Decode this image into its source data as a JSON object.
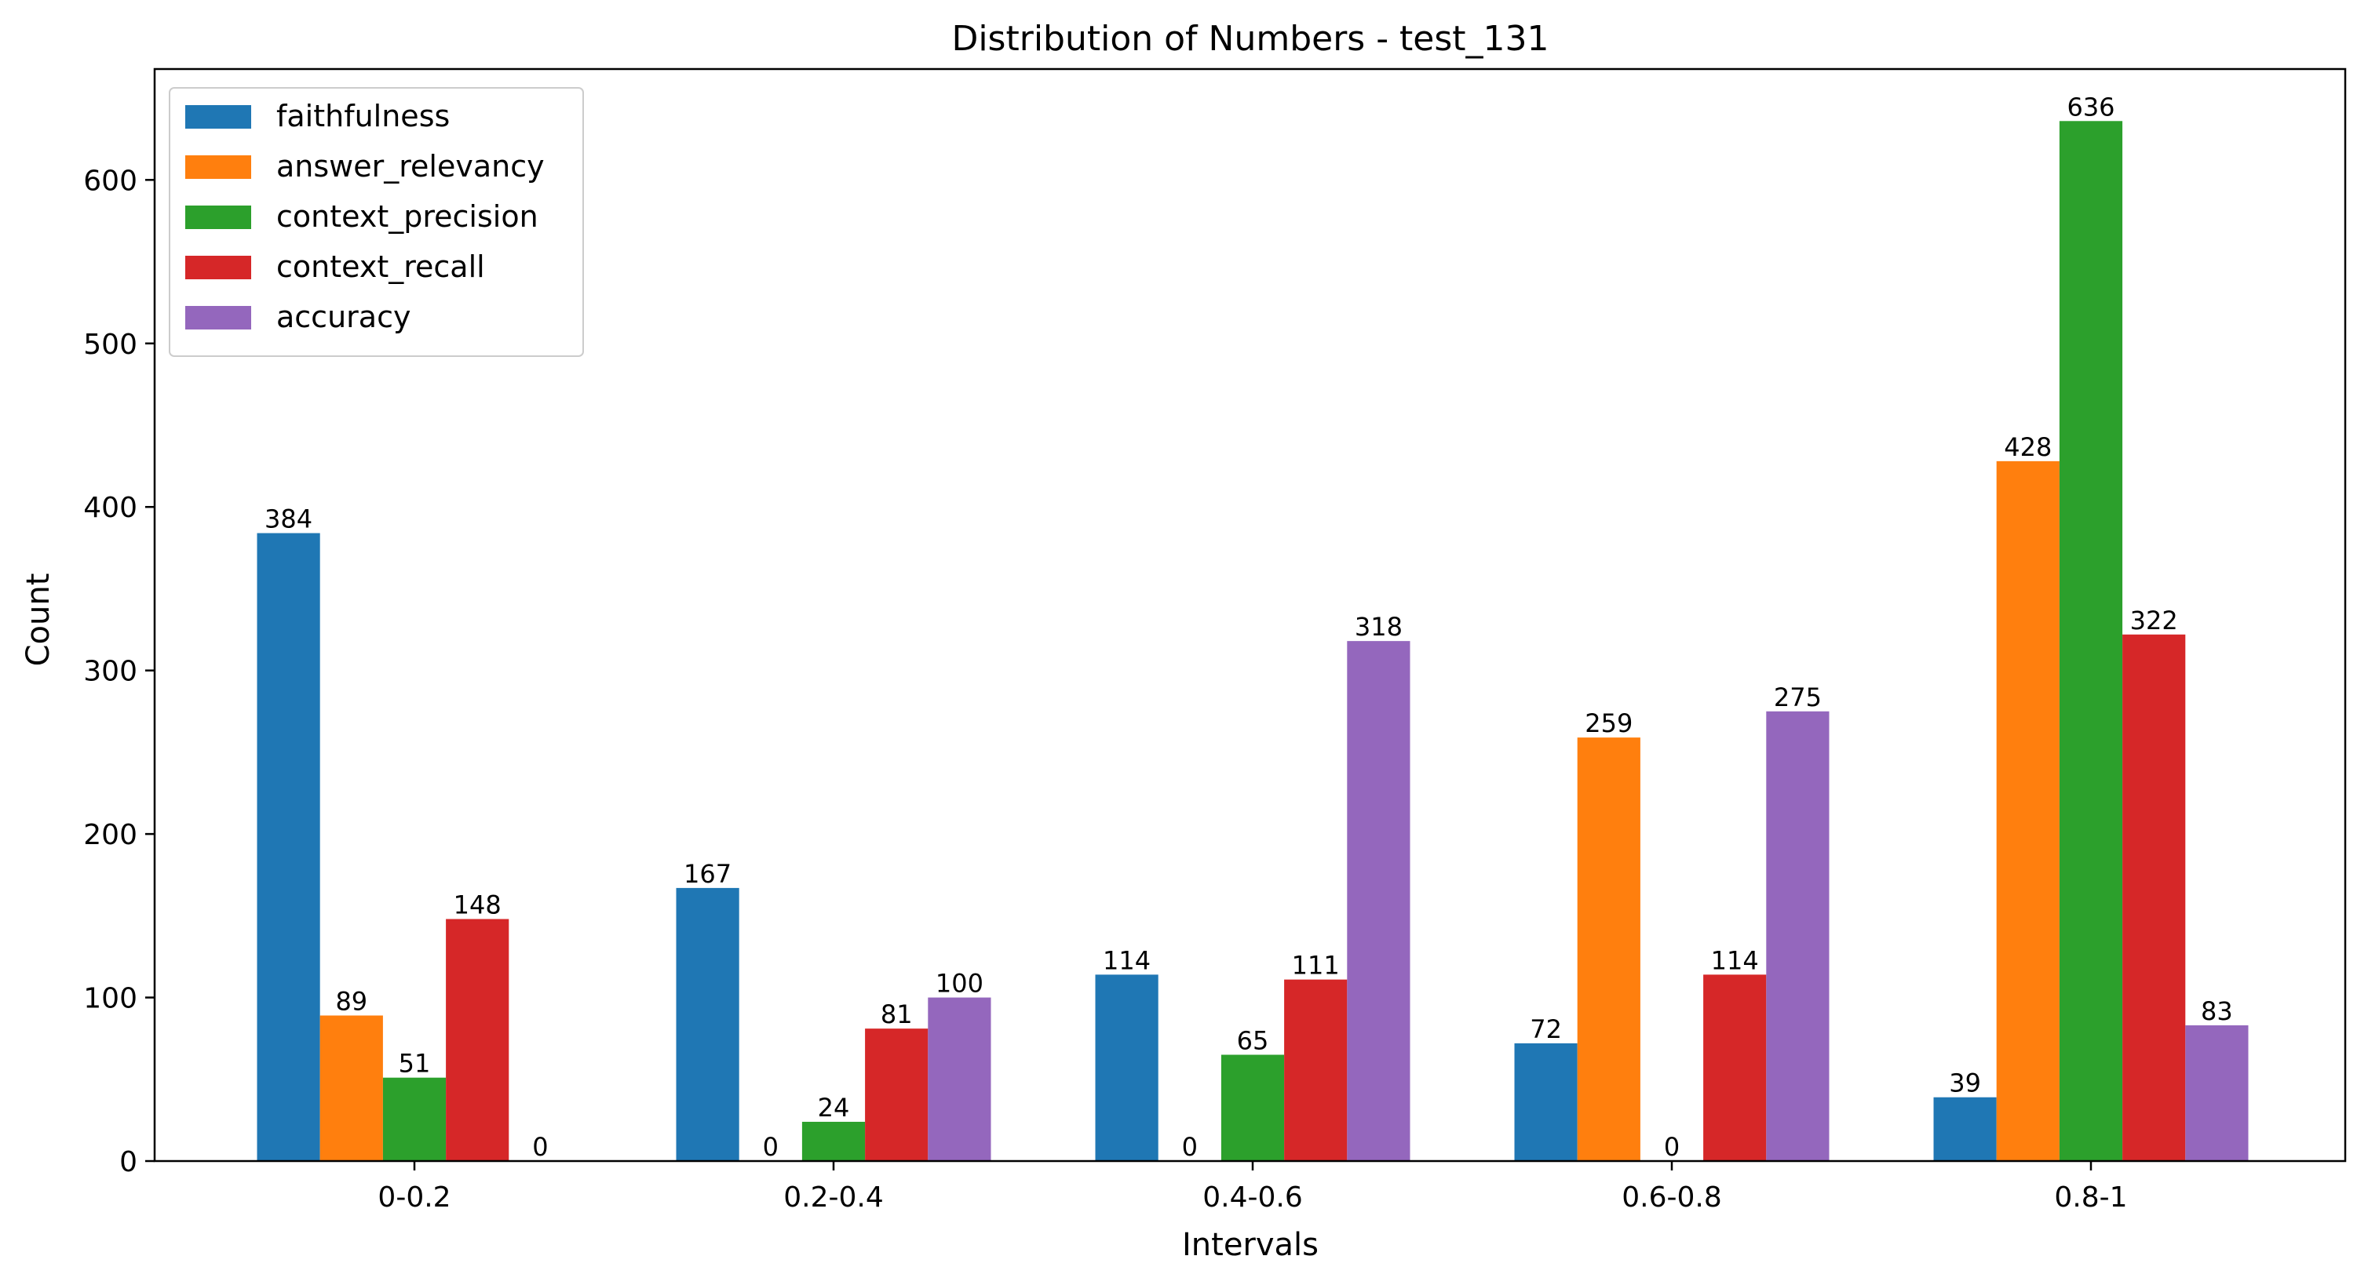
{
  "chart_data": {
    "type": "bar",
    "title": "Distribution of Numbers - test_131",
    "xlabel": "Intervals",
    "ylabel": "Count",
    "categories": [
      "0-0.2",
      "0.2-0.4",
      "0.4-0.6",
      "0.6-0.8",
      "0.8-1"
    ],
    "ylim": [
      0,
      667.8
    ],
    "yticks": [
      0,
      100,
      200,
      300,
      400,
      500,
      600
    ],
    "grid": false,
    "legend_position": "top-left",
    "series": [
      {
        "name": "faithfulness",
        "color": "#1f77b4",
        "values": [
          384,
          167,
          114,
          72,
          39
        ]
      },
      {
        "name": "answer_relevancy",
        "color": "#ff7f0e",
        "values": [
          89,
          0,
          0,
          259,
          428
        ]
      },
      {
        "name": "context_precision",
        "color": "#2ca02c",
        "values": [
          51,
          24,
          65,
          0,
          636
        ]
      },
      {
        "name": "context_recall",
        "color": "#d62728",
        "values": [
          148,
          81,
          111,
          114,
          322
        ]
      },
      {
        "name": "accuracy",
        "color": "#9467bd",
        "values": [
          0,
          100,
          318,
          275,
          83
        ]
      }
    ]
  }
}
